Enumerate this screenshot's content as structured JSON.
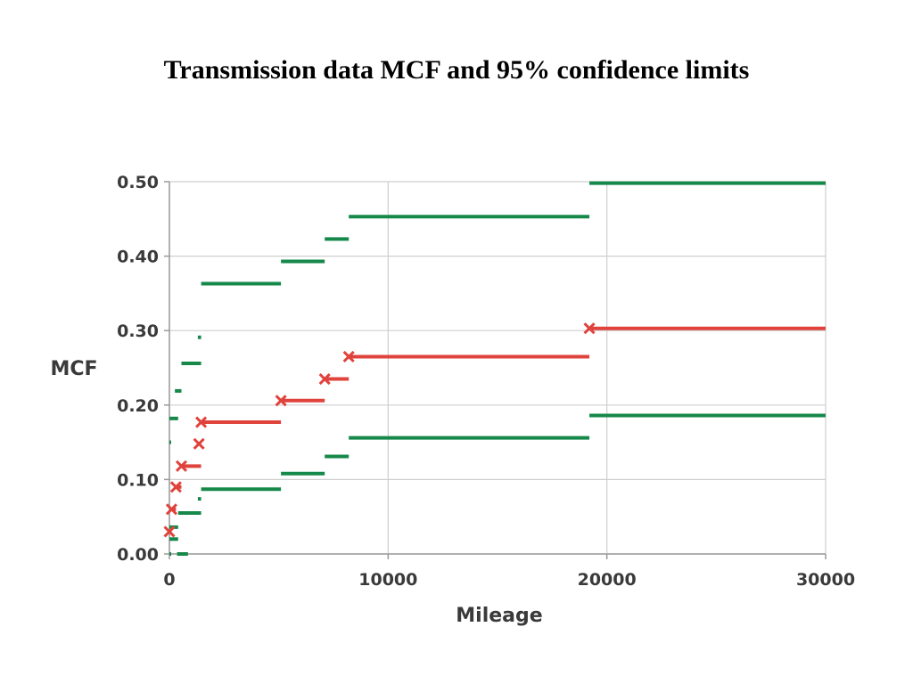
{
  "slide": {
    "title": "Transmission data MCF and 95% confidence limits"
  },
  "chart_data": {
    "type": "line",
    "title": "",
    "xlabel": "Mileage",
    "ylabel": "MCF",
    "xlim": [
      0,
      30000
    ],
    "ylim": [
      0,
      0.5
    ],
    "x_ticks": [
      0,
      10000,
      20000,
      30000
    ],
    "x_tick_labels": [
      "0",
      "10000",
      "20000",
      "30000"
    ],
    "y_ticks": [
      0,
      0.1,
      0.2,
      0.3,
      0.4,
      0.5
    ],
    "y_tick_labels": [
      "0.00",
      "0.10",
      "0.20",
      "0.30",
      "0.40",
      "0.50"
    ],
    "grid": true,
    "legend": "none",
    "colors": {
      "mcf": "#e0433c",
      "limits": "#16884a",
      "grid": "#cfcfcf",
      "axis": "#9a9a9a"
    },
    "series": [
      {
        "role": "mcf",
        "style": "step-with-x-markers",
        "steps": [
          {
            "x0": 0,
            "x1": 100,
            "y": 0.03
          },
          {
            "x0": 100,
            "x1": 300,
            "y": 0.06
          },
          {
            "x0": 300,
            "x1": 550,
            "y": 0.09
          },
          {
            "x0": 550,
            "x1": 1450,
            "y": 0.118
          },
          {
            "x0": 1350,
            "x1": 1450,
            "y": 0.148
          },
          {
            "x0": 1450,
            "x1": 5100,
            "y": 0.177
          },
          {
            "x0": 5100,
            "x1": 7100,
            "y": 0.206
          },
          {
            "x0": 7100,
            "x1": 8200,
            "y": 0.235
          },
          {
            "x0": 8200,
            "x1": 19200,
            "y": 0.265
          },
          {
            "x0": 19200,
            "x1": 30000,
            "y": 0.303
          }
        ]
      },
      {
        "role": "upper-95",
        "style": "step",
        "steps": [
          {
            "x0": 0,
            "x1": 80,
            "y": 0.15
          },
          {
            "x0": 0,
            "x1": 400,
            "y": 0.182
          },
          {
            "x0": 250,
            "x1": 550,
            "y": 0.219
          },
          {
            "x0": 550,
            "x1": 1450,
            "y": 0.256
          },
          {
            "x0": 1300,
            "x1": 1450,
            "y": 0.291
          },
          {
            "x0": 1450,
            "x1": 5100,
            "y": 0.363
          },
          {
            "x0": 5100,
            "x1": 7100,
            "y": 0.393
          },
          {
            "x0": 7100,
            "x1": 8200,
            "y": 0.423
          },
          {
            "x0": 8200,
            "x1": 19200,
            "y": 0.453
          },
          {
            "x0": 19200,
            "x1": 30000,
            "y": 0.498
          }
        ]
      },
      {
        "role": "lower-95",
        "style": "step",
        "steps": [
          {
            "x0": 0,
            "x1": 80,
            "y": 0.0
          },
          {
            "x0": 350,
            "x1": 850,
            "y": 0.0
          },
          {
            "x0": 0,
            "x1": 400,
            "y": 0.02
          },
          {
            "x0": 0,
            "x1": 400,
            "y": 0.036
          },
          {
            "x0": 400,
            "x1": 1450,
            "y": 0.055
          },
          {
            "x0": 1300,
            "x1": 1450,
            "y": 0.074
          },
          {
            "x0": 1450,
            "x1": 5100,
            "y": 0.087
          },
          {
            "x0": 5100,
            "x1": 7100,
            "y": 0.108
          },
          {
            "x0": 7100,
            "x1": 8200,
            "y": 0.131
          },
          {
            "x0": 8200,
            "x1": 19200,
            "y": 0.156
          },
          {
            "x0": 19200,
            "x1": 30000,
            "y": 0.186
          }
        ]
      }
    ]
  }
}
